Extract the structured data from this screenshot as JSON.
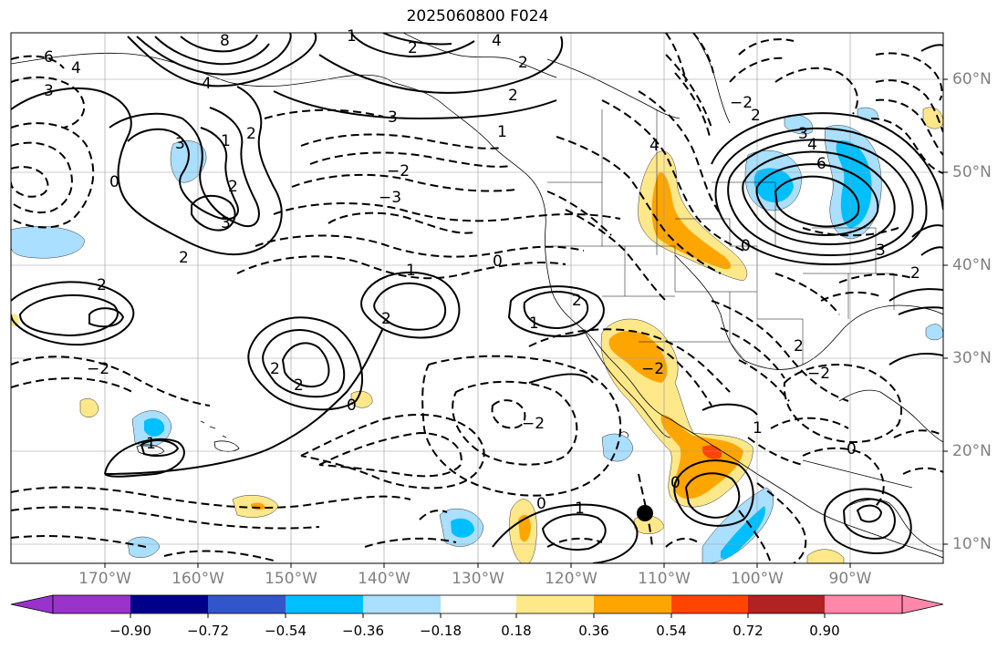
{
  "title": "2025060800 F024",
  "latitude_labels": [
    "60°N",
    "50°N",
    "40°N",
    "30°N",
    "20°N",
    "10°N"
  ],
  "longitude_labels": [
    "170°W",
    "160°W",
    "150°W",
    "140°W",
    "130°W",
    "120°W",
    "110°W",
    "100°W",
    "90°W"
  ],
  "colorbar": {
    "labels": [
      "−0.90",
      "−0.72",
      "−0.54",
      "−0.36",
      "−0.18",
      "0.18",
      "0.36",
      "0.54",
      "0.72",
      "0.90"
    ],
    "colors": [
      "#9933cc",
      "#00008b",
      "#3355cc",
      "#00bfff",
      "#aadfff",
      "#ffffff",
      "#ffe88a",
      "#ffa500",
      "#ff4500",
      "#b22222",
      "#ff88aa"
    ]
  },
  "shading_colors": {
    "light_blue": "#aadfff",
    "blue": "#00bfff",
    "light_yellow": "#ffe88a",
    "orange": "#ffa500",
    "red": "#ff4500"
  },
  "contour_labels": [
    "6",
    "4",
    "3",
    "8",
    "4",
    "2",
    "1",
    "4",
    "2",
    "2",
    "3",
    "1",
    "0",
    "2",
    "3",
    "3",
    "1",
    "2",
    "2",
    "−3",
    "−2",
    "0",
    "1",
    "1",
    "2",
    "2",
    "2",
    "2",
    "−2",
    "0",
    "1",
    "−2",
    "1",
    "0",
    "0",
    "1",
    "−2",
    "2",
    "4",
    "4",
    "3",
    "6",
    "2",
    "−2",
    "−2",
    "2",
    "0",
    "2",
    "0",
    "3"
  ],
  "marker": "storm-center-dot"
}
